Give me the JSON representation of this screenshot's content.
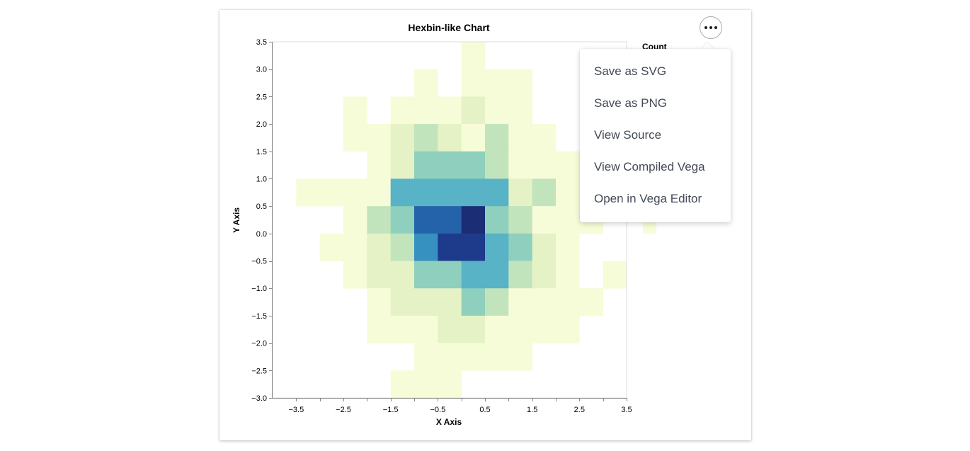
{
  "chart_data": {
    "type": "heatmap",
    "title": "Hexbin-like Chart",
    "xlabel": "X Axis",
    "ylabel": "Y Axis",
    "legend_title": "Count",
    "x_ticks": [
      -3.5,
      -2.5,
      -1.5,
      -0.5,
      0.5,
      1.5,
      2.5,
      3.5
    ],
    "x_tick_labels": [
      "−3.5",
      "−2.5",
      "−1.5",
      "−0.5",
      "0.5",
      "1.5",
      "2.5",
      "3.5"
    ],
    "y_ticks": [
      3.5,
      3.0,
      2.5,
      2.0,
      1.5,
      1.0,
      0.5,
      0.0,
      -0.5,
      -1.0,
      -1.5,
      -2.0,
      -2.5,
      -3.0
    ],
    "y_tick_labels": [
      "3.5",
      "3.0",
      "2.5",
      "2.0",
      "1.5",
      "1.0",
      "0.5",
      "0.0",
      "−0.5",
      "−1.0",
      "−1.5",
      "−2.0",
      "−2.5",
      "−3.0"
    ],
    "xlim": [
      -4.0,
      3.5
    ],
    "ylim": [
      -3.0,
      3.5
    ],
    "bin_width": 0.5,
    "bin_height": 0.5,
    "max_count": 10,
    "color_scheme": [
      "#f7fcd8",
      "#e4f2c5",
      "#c2e4bd",
      "#8fcfbd",
      "#58b3c6",
      "#3690c0",
      "#2462aa",
      "#1e3a8a",
      "#1b2d75"
    ],
    "cells": [
      {
        "x": 0.0,
        "y": 3.0,
        "count": 1
      },
      {
        "x": -1.0,
        "y": 2.5,
        "count": 1
      },
      {
        "x": 0.0,
        "y": 2.5,
        "count": 1
      },
      {
        "x": 0.5,
        "y": 2.5,
        "count": 1
      },
      {
        "x": 1.0,
        "y": 2.5,
        "count": 1
      },
      {
        "x": -2.5,
        "y": 2.0,
        "count": 1
      },
      {
        "x": -1.5,
        "y": 2.0,
        "count": 1
      },
      {
        "x": -1.0,
        "y": 2.0,
        "count": 1
      },
      {
        "x": -0.5,
        "y": 2.0,
        "count": 1
      },
      {
        "x": 0.0,
        "y": 2.0,
        "count": 2
      },
      {
        "x": 0.5,
        "y": 2.0,
        "count": 1
      },
      {
        "x": 1.0,
        "y": 2.0,
        "count": 1
      },
      {
        "x": -2.5,
        "y": 1.5,
        "count": 1
      },
      {
        "x": -2.0,
        "y": 1.5,
        "count": 1
      },
      {
        "x": -1.5,
        "y": 1.5,
        "count": 2
      },
      {
        "x": -1.0,
        "y": 1.5,
        "count": 3
      },
      {
        "x": -0.5,
        "y": 1.5,
        "count": 2
      },
      {
        "x": 0.0,
        "y": 1.5,
        "count": 1
      },
      {
        "x": 0.5,
        "y": 1.5,
        "count": 3
      },
      {
        "x": 1.0,
        "y": 1.5,
        "count": 1
      },
      {
        "x": 1.5,
        "y": 1.5,
        "count": 1
      },
      {
        "x": -2.0,
        "y": 1.0,
        "count": 1
      },
      {
        "x": -1.5,
        "y": 1.0,
        "count": 2
      },
      {
        "x": -1.0,
        "y": 1.0,
        "count": 4
      },
      {
        "x": -0.5,
        "y": 1.0,
        "count": 4
      },
      {
        "x": 0.0,
        "y": 1.0,
        "count": 4
      },
      {
        "x": 0.5,
        "y": 1.0,
        "count": 3
      },
      {
        "x": 1.0,
        "y": 1.0,
        "count": 1
      },
      {
        "x": 1.5,
        "y": 1.0,
        "count": 1
      },
      {
        "x": 2.0,
        "y": 1.0,
        "count": 1
      },
      {
        "x": 2.5,
        "y": 1.0,
        "count": 1
      },
      {
        "x": -3.5,
        "y": 0.5,
        "count": 1
      },
      {
        "x": -3.0,
        "y": 0.5,
        "count": 1
      },
      {
        "x": -2.5,
        "y": 0.5,
        "count": 1
      },
      {
        "x": -2.0,
        "y": 0.5,
        "count": 1
      },
      {
        "x": -1.5,
        "y": 0.5,
        "count": 5
      },
      {
        "x": -1.0,
        "y": 0.5,
        "count": 6
      },
      {
        "x": -0.5,
        "y": 0.5,
        "count": 5
      },
      {
        "x": 0.0,
        "y": 0.5,
        "count": 5
      },
      {
        "x": 0.5,
        "y": 0.5,
        "count": 5
      },
      {
        "x": 1.0,
        "y": 0.5,
        "count": 2
      },
      {
        "x": 1.5,
        "y": 0.5,
        "count": 3
      },
      {
        "x": 2.0,
        "y": 0.5,
        "count": 1
      },
      {
        "x": 2.5,
        "y": 0.5,
        "count": 1
      },
      {
        "x": -2.5,
        "y": 0.0,
        "count": 1
      },
      {
        "x": -2.0,
        "y": 0.0,
        "count": 3
      },
      {
        "x": -1.5,
        "y": 0.0,
        "count": 4
      },
      {
        "x": -1.0,
        "y": 0.0,
        "count": 8
      },
      {
        "x": -0.5,
        "y": 0.0,
        "count": 8
      },
      {
        "x": 0.0,
        "y": 0.0,
        "count": 10
      },
      {
        "x": 0.5,
        "y": 0.0,
        "count": 4
      },
      {
        "x": 1.0,
        "y": 0.0,
        "count": 3
      },
      {
        "x": 1.5,
        "y": 0.0,
        "count": 1
      },
      {
        "x": 2.0,
        "y": 0.0,
        "count": 1
      },
      {
        "x": 2.5,
        "y": 0.0,
        "count": 1
      },
      {
        "x": -3.0,
        "y": -0.5,
        "count": 1
      },
      {
        "x": -2.5,
        "y": -0.5,
        "count": 1
      },
      {
        "x": -2.0,
        "y": -0.5,
        "count": 2
      },
      {
        "x": -1.5,
        "y": -0.5,
        "count": 3
      },
      {
        "x": -1.0,
        "y": -0.5,
        "count": 7
      },
      {
        "x": -0.5,
        "y": -0.5,
        "count": 9
      },
      {
        "x": 0.0,
        "y": -0.5,
        "count": 9
      },
      {
        "x": 0.5,
        "y": -0.5,
        "count": 6
      },
      {
        "x": 1.0,
        "y": -0.5,
        "count": 4
      },
      {
        "x": 1.5,
        "y": -0.5,
        "count": 2
      },
      {
        "x": 2.0,
        "y": -0.5,
        "count": 1
      },
      {
        "x": -2.5,
        "y": -1.0,
        "count": 1
      },
      {
        "x": -2.0,
        "y": -1.0,
        "count": 2
      },
      {
        "x": -1.5,
        "y": -1.0,
        "count": 2
      },
      {
        "x": -1.0,
        "y": -1.0,
        "count": 4
      },
      {
        "x": -0.5,
        "y": -1.0,
        "count": 4
      },
      {
        "x": 0.0,
        "y": -1.0,
        "count": 5
      },
      {
        "x": 0.5,
        "y": -1.0,
        "count": 6
      },
      {
        "x": 1.0,
        "y": -1.0,
        "count": 3
      },
      {
        "x": 1.5,
        "y": -1.0,
        "count": 2
      },
      {
        "x": 2.0,
        "y": -1.0,
        "count": 1
      },
      {
        "x": 3.0,
        "y": -1.0,
        "count": 1
      },
      {
        "x": -2.0,
        "y": -1.5,
        "count": 1
      },
      {
        "x": -1.5,
        "y": -1.5,
        "count": 2
      },
      {
        "x": -1.0,
        "y": -1.5,
        "count": 2
      },
      {
        "x": -0.5,
        "y": -1.5,
        "count": 2
      },
      {
        "x": 0.0,
        "y": -1.5,
        "count": 4
      },
      {
        "x": 0.5,
        "y": -1.5,
        "count": 3
      },
      {
        "x": 1.0,
        "y": -1.5,
        "count": 1
      },
      {
        "x": 1.5,
        "y": -1.5,
        "count": 1
      },
      {
        "x": 2.0,
        "y": -1.5,
        "count": 1
      },
      {
        "x": 2.5,
        "y": -1.5,
        "count": 1
      },
      {
        "x": -2.0,
        "y": -2.0,
        "count": 1
      },
      {
        "x": -1.5,
        "y": -2.0,
        "count": 1
      },
      {
        "x": -1.0,
        "y": -2.0,
        "count": 1
      },
      {
        "x": -0.5,
        "y": -2.0,
        "count": 2
      },
      {
        "x": 0.0,
        "y": -2.0,
        "count": 2
      },
      {
        "x": 0.5,
        "y": -2.0,
        "count": 1
      },
      {
        "x": 1.0,
        "y": -2.0,
        "count": 1
      },
      {
        "x": 1.5,
        "y": -2.0,
        "count": 1
      },
      {
        "x": 2.0,
        "y": -2.0,
        "count": 1
      },
      {
        "x": -1.0,
        "y": -2.5,
        "count": 1
      },
      {
        "x": -0.5,
        "y": -2.5,
        "count": 1
      },
      {
        "x": 0.0,
        "y": -2.5,
        "count": 1
      },
      {
        "x": 0.5,
        "y": -2.5,
        "count": 1
      },
      {
        "x": 1.0,
        "y": -2.5,
        "count": 1
      },
      {
        "x": -1.5,
        "y": -3.0,
        "count": 1
      },
      {
        "x": -1.0,
        "y": -3.0,
        "count": 1
      },
      {
        "x": -0.5,
        "y": -3.0,
        "count": 1
      }
    ]
  },
  "legend_peek": {
    "cells": [
      {
        "row": 0,
        "count": 1
      }
    ]
  },
  "actions": {
    "button_label": "•••",
    "menu_items": [
      {
        "label": "Save as SVG"
      },
      {
        "label": "Save as PNG"
      },
      {
        "label": "View Source"
      },
      {
        "label": "View Compiled Vega"
      },
      {
        "label": "Open in Vega Editor"
      }
    ]
  }
}
